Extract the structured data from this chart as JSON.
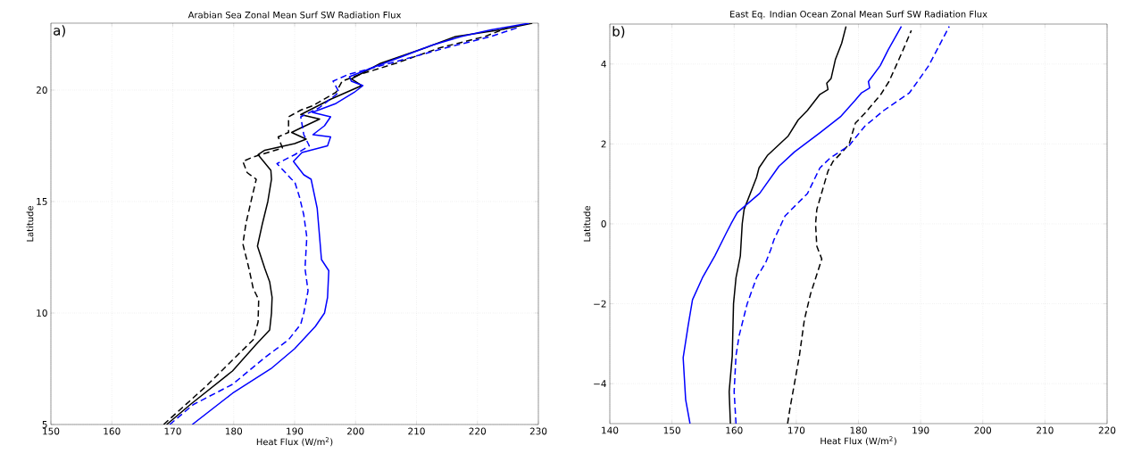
{
  "chart_data": [
    {
      "type": "line",
      "title": "Arabian Sea Zonal Mean Surf SW Radiation Flux",
      "xlabel": "Heat Flux (W/m$^{2}$)",
      "ylabel": "Latitude",
      "annotations": [
        "a)"
      ],
      "xlim": [
        150,
        230
      ],
      "ylim": [
        5,
        23
      ],
      "xticks": [
        150,
        160,
        170,
        180,
        190,
        200,
        210,
        220,
        230
      ],
      "yticks": [
        5,
        10,
        15,
        20
      ],
      "grid": true,
      "series": [
        {
          "color": "#000000",
          "line_style": "solid",
          "x": [
            169.0,
            172.9,
            179.8,
            183.7,
            185.9,
            186.2,
            186.3,
            185.9,
            185.1,
            183.9,
            184.7,
            185.6,
            186.2,
            186.1,
            184.0,
            185.1,
            190.0,
            191.9,
            189.5,
            191.0,
            194.1,
            191.0,
            196.0,
            201.0,
            199.3,
            204.1,
            211.5,
            216.4,
            223.7,
            229.0
          ],
          "values": [
            5,
            5.9,
            7.4,
            8.6,
            9.24,
            10,
            10.7,
            11.4,
            12.0,
            13.0,
            14.0,
            15.0,
            16.0,
            16.4,
            17.1,
            17.3,
            17.6,
            17.8,
            18.1,
            18.3,
            18.7,
            18.9,
            19.6,
            20.2,
            20.5,
            21.2,
            21.9,
            22.4,
            22.7,
            23
          ]
        },
        {
          "color": "#000000",
          "line_style": "dashed",
          "x": [
            168.5,
            175.4,
            180.2,
            183.2,
            184.0,
            184.1,
            183.2,
            182.5,
            181.5,
            182.0,
            183.0,
            183.7,
            182.2,
            181.5,
            183.2,
            188.0,
            187.3,
            189.0,
            189.0,
            191.0,
            193.0,
            196.8,
            197.8,
            200.7,
            206.6,
            213.9,
            221.2,
            225.0
          ],
          "values": [
            5,
            6.7,
            8.0,
            8.8,
            9.6,
            10.6,
            11.1,
            12.0,
            13.1,
            14.0,
            15.2,
            16.0,
            16.3,
            16.8,
            17.0,
            17.4,
            17.9,
            18.1,
            18.8,
            19.1,
            19.3,
            19.9,
            20.4,
            20.7,
            21.2,
            21.9,
            22.4,
            22.8
          ]
        },
        {
          "color": "#0000ff",
          "line_style": "solid",
          "x": [
            173.2,
            179.8,
            186.1,
            190.0,
            193.4,
            194.9,
            195.4,
            195.6,
            194.4,
            194.1,
            193.7,
            192.7,
            191.5,
            189.8,
            191.2,
            195.4,
            195.9,
            193.0,
            194.9,
            195.9,
            192.9,
            196.8,
            199.8,
            201.2,
            199.3,
            199.0,
            202.7,
            207.6,
            212.4,
            217.3,
            222.2,
            228.5
          ],
          "values": [
            5,
            6.4,
            7.5,
            8.4,
            9.4,
            10,
            10.7,
            11.9,
            12.4,
            13.4,
            14.7,
            16.0,
            16.2,
            16.8,
            17.2,
            17.5,
            17.9,
            18.0,
            18.4,
            18.8,
            19.0,
            19.4,
            19.9,
            20.2,
            20.4,
            20.6,
            21.0,
            21.5,
            22.0,
            22.4,
            22.7,
            23
          ]
        },
        {
          "color": "#0000ff",
          "line_style": "dashed",
          "x": [
            169.5,
            173.4,
            179.8,
            185.1,
            189.0,
            191.0,
            191.5,
            192.2,
            191.7,
            192.0,
            191.5,
            190.8,
            190.0,
            189.5,
            187.1,
            190.0,
            192.4,
            191.5,
            191.0,
            194.0,
            197.3,
            196.3,
            198.8,
            205.6,
            214.9,
            222.2,
            226.6
          ],
          "values": [
            5,
            5.9,
            6.8,
            8.0,
            8.8,
            9.5,
            10,
            11.0,
            12.0,
            13.4,
            14.4,
            15.2,
            15.9,
            16.0,
            16.7,
            17.1,
            17.5,
            18.0,
            18.8,
            19.2,
            19.9,
            20.4,
            20.7,
            21.2,
            21.9,
            22.4,
            22.8
          ]
        }
      ]
    },
    {
      "type": "line",
      "title": "East Eq. Indian Ocean Zonal Mean Surf SW Radiation Flux",
      "xlabel": "Heat Flux (W/m$^{2}$)",
      "ylabel": "Latitude",
      "annotations": [
        "b)"
      ],
      "xlim": [
        140,
        220
      ],
      "ylim": [
        -5,
        5
      ],
      "xticks": [
        140,
        150,
        160,
        170,
        180,
        190,
        200,
        210,
        220
      ],
      "yticks": [
        {
          "value": -4,
          "label": "−4"
        },
        {
          "value": -2,
          "label": "−2"
        },
        0,
        2,
        4
      ],
      "grid": true,
      "series": [
        {
          "color": "#000000",
          "line_style": "solid",
          "x": [
            159.4,
            159.2,
            159.7,
            159.9,
            160.3,
            161.0,
            161.3,
            161.6,
            163.6,
            164.0,
            165.4,
            168.7,
            170.3,
            171.8,
            173.8,
            175.1,
            174.9,
            175.6,
            176.3,
            177.3,
            178.0
          ],
          "values": [
            -5,
            -4.2,
            -3.3,
            -2,
            -1.35,
            -0.8,
            0,
            0.36,
            1.16,
            1.4,
            1.72,
            2.2,
            2.6,
            2.84,
            3.24,
            3.36,
            3.52,
            3.64,
            4.12,
            4.52,
            4.94
          ]
        },
        {
          "color": "#0000ff",
          "line_style": "solid",
          "x": [
            152.9,
            152.2,
            151.8,
            152.6,
            153.3,
            154.9,
            156.9,
            158.7,
            159.5,
            160.5,
            164.1,
            167.2,
            169.7,
            173.8,
            177.1,
            179.4,
            180.5,
            181.8,
            181.6,
            183.5,
            184.8,
            186.9
          ],
          "values": [
            -5,
            -4.4,
            -3.35,
            -2.55,
            -1.9,
            -1.35,
            -0.8,
            -0.24,
            0,
            0.28,
            0.76,
            1.44,
            1.8,
            2.28,
            2.68,
            3.08,
            3.28,
            3.4,
            3.56,
            3.96,
            4.36,
            4.94
          ]
        },
        {
          "color": "#000000",
          "line_style": "dashed",
          "x": [
            168.6,
            169.0,
            169.7,
            170.5,
            171.3,
            172.3,
            174.1,
            173.3,
            173.1,
            173.3,
            175.1,
            175.9,
            177.4,
            178.5,
            179.5,
            181.0,
            183.6,
            184.9,
            185.6,
            187.2,
            188.5
          ],
          "values": [
            -5,
            -4.6,
            -4.0,
            -3.3,
            -2.4,
            -1.75,
            -0.88,
            -0.56,
            0,
            0.36,
            1.32,
            1.56,
            1.8,
            2.0,
            2.52,
            2.76,
            3.24,
            3.56,
            3.8,
            4.36,
            4.84
          ]
        },
        {
          "color": "#0000ff",
          "line_style": "dashed",
          "x": [
            160.3,
            160.0,
            160.3,
            160.8,
            162.1,
            163.6,
            165.1,
            165.9,
            166.4,
            167.6,
            168.2,
            171.8,
            173.8,
            175.4,
            178.5,
            181.0,
            184.1,
            188.2,
            189.5,
            191.3,
            194.6
          ],
          "values": [
            -5,
            -4.2,
            -3.3,
            -2.8,
            -2,
            -1.35,
            -0.96,
            -0.64,
            -0.4,
            0,
            0.2,
            0.76,
            1.4,
            1.64,
            1.96,
            2.44,
            2.84,
            3.28,
            3.56,
            3.96,
            4.94
          ]
        }
      ]
    }
  ]
}
